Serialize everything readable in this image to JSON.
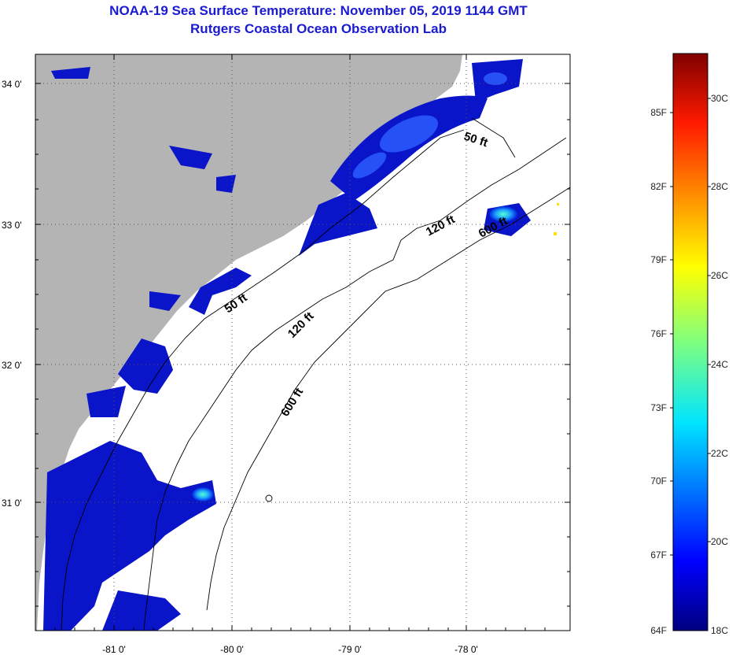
{
  "header": {
    "title": "NOAA-19 Sea Surface Temperature:  November 05, 2019 1144 GMT",
    "subtitle": "Rutgers Coastal Ocean Observation Lab"
  },
  "map": {
    "lat_labels": [
      "34 0'",
      "33 0'",
      "32 0'",
      "31 0'"
    ],
    "lon_labels": [
      "-81 0'",
      "-80 0'",
      "-79 0'",
      "-78 0'"
    ],
    "contour_labels": [
      "50 ft",
      "120 ft",
      "600 ft",
      "50 ft",
      "120 ft",
      "600 ft"
    ],
    "land_color": "#b4b4b4",
    "ocean_color": "#ffffff"
  },
  "colorbar": {
    "f_labels": [
      "85F",
      "82F",
      "79F",
      "76F",
      "73F",
      "70F",
      "67F",
      "64F"
    ],
    "c_labels": [
      "30C",
      "28C",
      "26C",
      "24C",
      "22C",
      "20C",
      "18C"
    ]
  }
}
